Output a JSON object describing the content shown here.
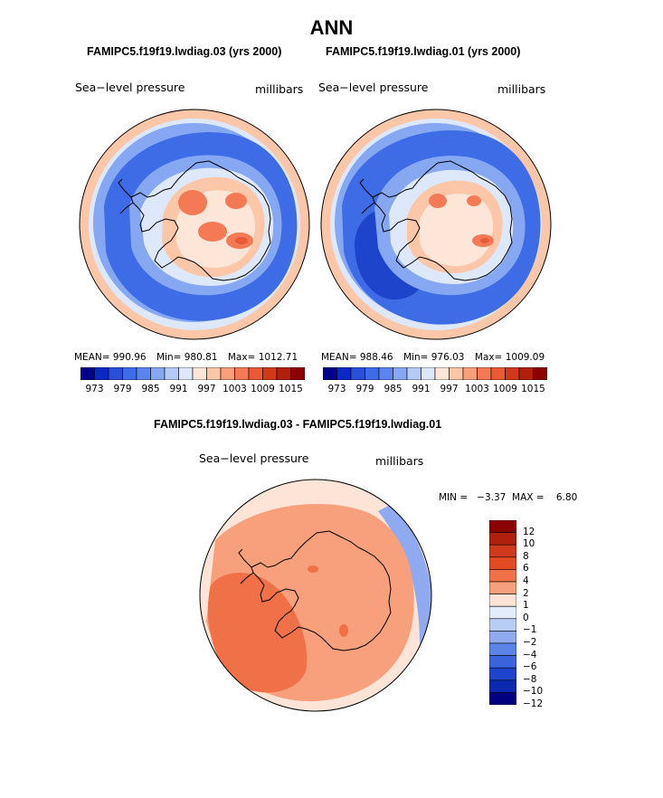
{
  "chart_data": [
    {
      "type": "heatmap",
      "projection": "polar-stereographic-south",
      "title": "FAMIPC5.f19f19.lwdiag.03 (yrs 2000)",
      "left_label": "Sea−level pressure",
      "right_label": "millibars",
      "stats": {
        "mean_label": "MEAN=",
        "mean": "990.96",
        "min_label": "Min=",
        "min": "980.81",
        "max_label": "Max=",
        "max": "1012.71"
      },
      "colorbar_ticks": [
        "973",
        "979",
        "985",
        "991",
        "997",
        "1003",
        "1009",
        "1015"
      ]
    },
    {
      "type": "heatmap",
      "projection": "polar-stereographic-south",
      "title": "FAMIPC5.f19f19.lwdiag.01 (yrs 2000)",
      "left_label": "Sea−level pressure",
      "right_label": "millibars",
      "stats": {
        "mean_label": "MEAN=",
        "mean": "988.46",
        "min_label": "Min=",
        "min": "976.03",
        "max_label": "Max=",
        "max": "1009.09"
      },
      "colorbar_ticks": [
        "973",
        "979",
        "985",
        "991",
        "997",
        "1003",
        "1009",
        "1015"
      ]
    },
    {
      "type": "heatmap",
      "projection": "polar-stereographic-south",
      "title": "FAMIPC5.f19f19.lwdiag.03 - FAMIPC5.f19f19.lwdiag.01",
      "left_label": "Sea−level pressure",
      "right_label": "millibars",
      "stats_text": "MIN =   −3.37  MAX =    6.80",
      "colorbar_ticks": [
        "12",
        "10",
        "8",
        "6",
        "4",
        "2",
        "1",
        "0",
        "−1",
        "−2",
        "−4",
        "−6",
        "−8",
        "−10",
        "−12"
      ]
    }
  ],
  "page_title": "ANN",
  "palette_abs": [
    "#00008b",
    "#0a28c8",
    "#2a4fd8",
    "#3e6be6",
    "#5b85ec",
    "#86a8f2",
    "#b4cbf7",
    "#dde8fb",
    "#fde6d8",
    "#fcc6a8",
    "#fa9f7a",
    "#f37a55",
    "#e95a36",
    "#d03a1c",
    "#b0200c",
    "#8b0000"
  ],
  "palette_diff": [
    "#8b0000",
    "#b0200c",
    "#d03a1c",
    "#e44a22",
    "#f07048",
    "#f8a07c",
    "#fde4d6",
    "#e3edf9",
    "#b8cdf4",
    "#8faaf0",
    "#5c83e8",
    "#3a63de",
    "#1e44cc",
    "#0a28b0",
    "#000080"
  ],
  "map_colors": {
    "ocean_blue": "#3e6be6",
    "ocean_mid": "#5b85ec",
    "ocean_light": "#86a8f2",
    "ring_pale": "#dde8fb",
    "ring_peach": "#fcc6a8",
    "land_pale": "#fde6d8",
    "peak": "#f37a55",
    "peak_dark": "#e95a36",
    "deep_blue": "#1e44cc",
    "diff_peach": "#f8a07c",
    "diff_orange": "#f07048",
    "diff_light": "#fde4d6",
    "diff_blue": "#8faaf0"
  }
}
